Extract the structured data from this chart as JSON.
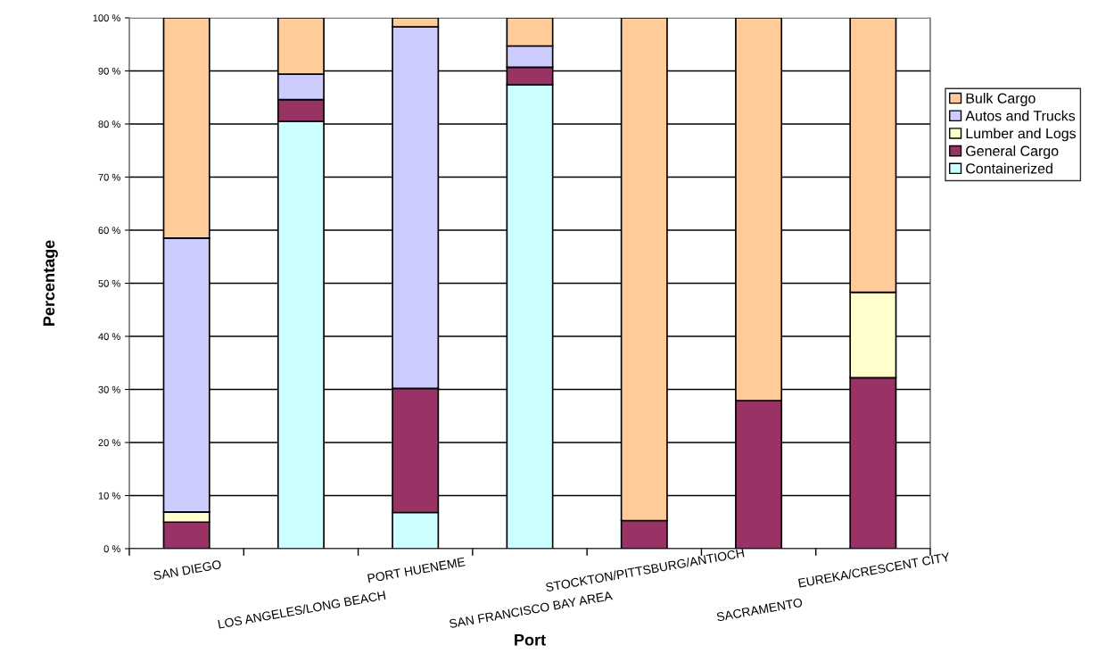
{
  "chart_data": {
    "type": "bar",
    "stacked": true,
    "xlabel": "Port",
    "ylabel": "Percentage",
    "categories": [
      "SAN DIEGO",
      "LOS ANGELES/LONG BEACH",
      "PORT HUENEME",
      "SAN FRANCISCO BAY AREA",
      "STOCKTON/PITTSBURG/ANTIOCH",
      "SACRAMENTO",
      "EUREKA/CRESCENT CITY"
    ],
    "series": [
      {
        "name": "Containerized",
        "color": "#ccffff",
        "values": [
          0,
          80.5,
          6.8,
          87.4,
          0,
          0,
          0
        ]
      },
      {
        "name": "General Cargo",
        "color": "#993366",
        "values": [
          5,
          4.1,
          23.4,
          3.3,
          5.3,
          27.9,
          32.2
        ]
      },
      {
        "name": "Lumber and Logs",
        "color": "#ffffcc",
        "values": [
          1.9,
          0,
          0,
          0,
          0,
          0,
          16.1
        ]
      },
      {
        "name": "Autos and Trucks",
        "color": "#ccccff",
        "values": [
          51.6,
          4.8,
          68.1,
          4,
          0,
          0,
          0
        ]
      },
      {
        "name": "Bulk Cargo",
        "color": "#ffcc99",
        "values": [
          41.5,
          10.6,
          1.7,
          5.3,
          94.7,
          72.1,
          51.7
        ]
      }
    ],
    "ylim": [
      0,
      100
    ],
    "yticks": [
      {
        "value": 0,
        "label": "0 %"
      },
      {
        "value": 10,
        "label": "10 %"
      },
      {
        "value": 20,
        "label": "20 %"
      },
      {
        "value": 30,
        "label": "30 %"
      },
      {
        "value": 40,
        "label": "40 %"
      },
      {
        "value": 50,
        "label": "50 %"
      },
      {
        "value": 60,
        "label": "60 %"
      },
      {
        "value": 70,
        "label": "70 %"
      },
      {
        "value": 80,
        "label": "80 %"
      },
      {
        "value": 90,
        "label": "90 %"
      },
      {
        "value": 100,
        "label": "100 %"
      }
    ],
    "grid": "y",
    "legend": "right"
  }
}
